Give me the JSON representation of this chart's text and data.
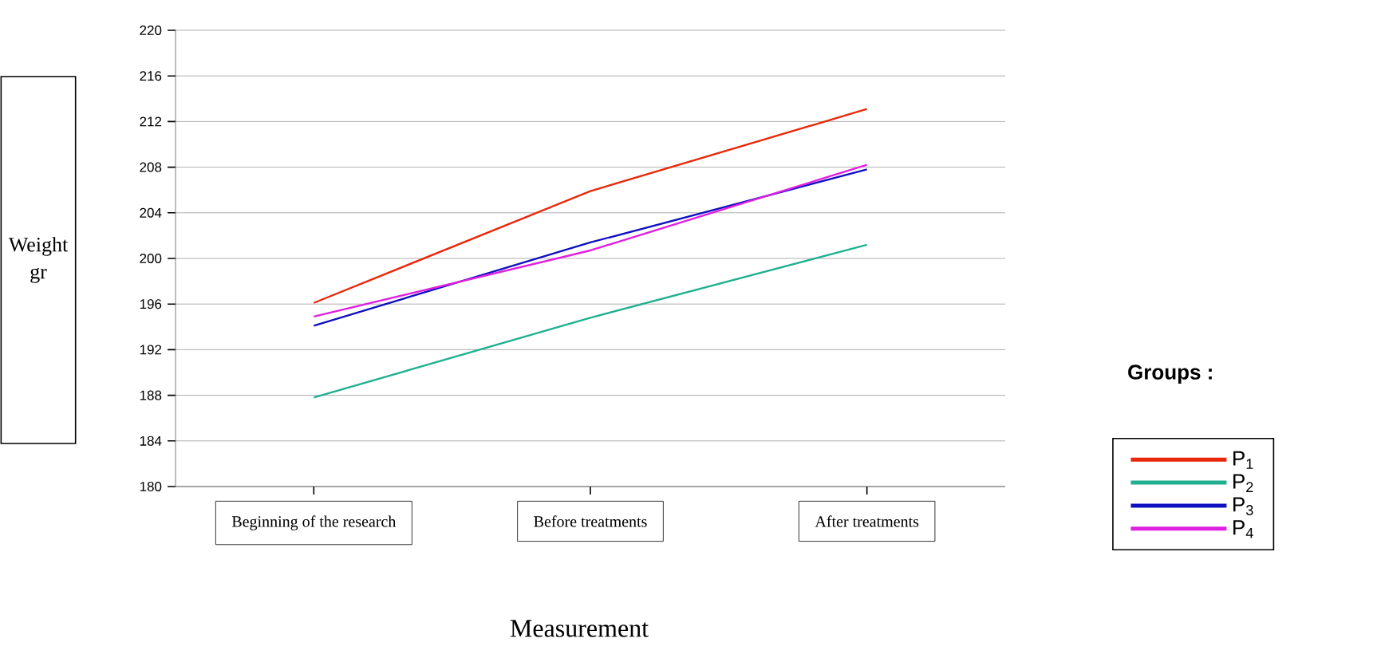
{
  "chart_data": {
    "type": "line",
    "categories": [
      "Beginning of the research",
      "Before  treatments",
      "After  treatments"
    ],
    "xlabel": "Measurement",
    "ylabel": "Weight gr",
    "legend_title": "Groups :",
    "ylim": [
      180,
      220
    ],
    "yticks": [
      180,
      184,
      188,
      192,
      196,
      200,
      204,
      208,
      212,
      216,
      220
    ],
    "grid": "y",
    "legend": "right",
    "marker": "none",
    "line_style": "solid",
    "series": [
      {
        "name": "P$_{1}$",
        "color": "#e8280a",
        "values": [
          196.1,
          205.9,
          213.1
        ]
      },
      {
        "name": "P$_{2}$",
        "color": "#20b090",
        "values": [
          187.8,
          194.8,
          201.2
        ]
      },
      {
        "name": "P$_{3}$",
        "color": "#1010c0",
        "values": [
          194.1,
          201.4,
          207.8
        ]
      },
      {
        "name": "P$_{4}$",
        "color": "#e020e0",
        "values": [
          194.9,
          200.7,
          208.2
        ]
      }
    ]
  }
}
